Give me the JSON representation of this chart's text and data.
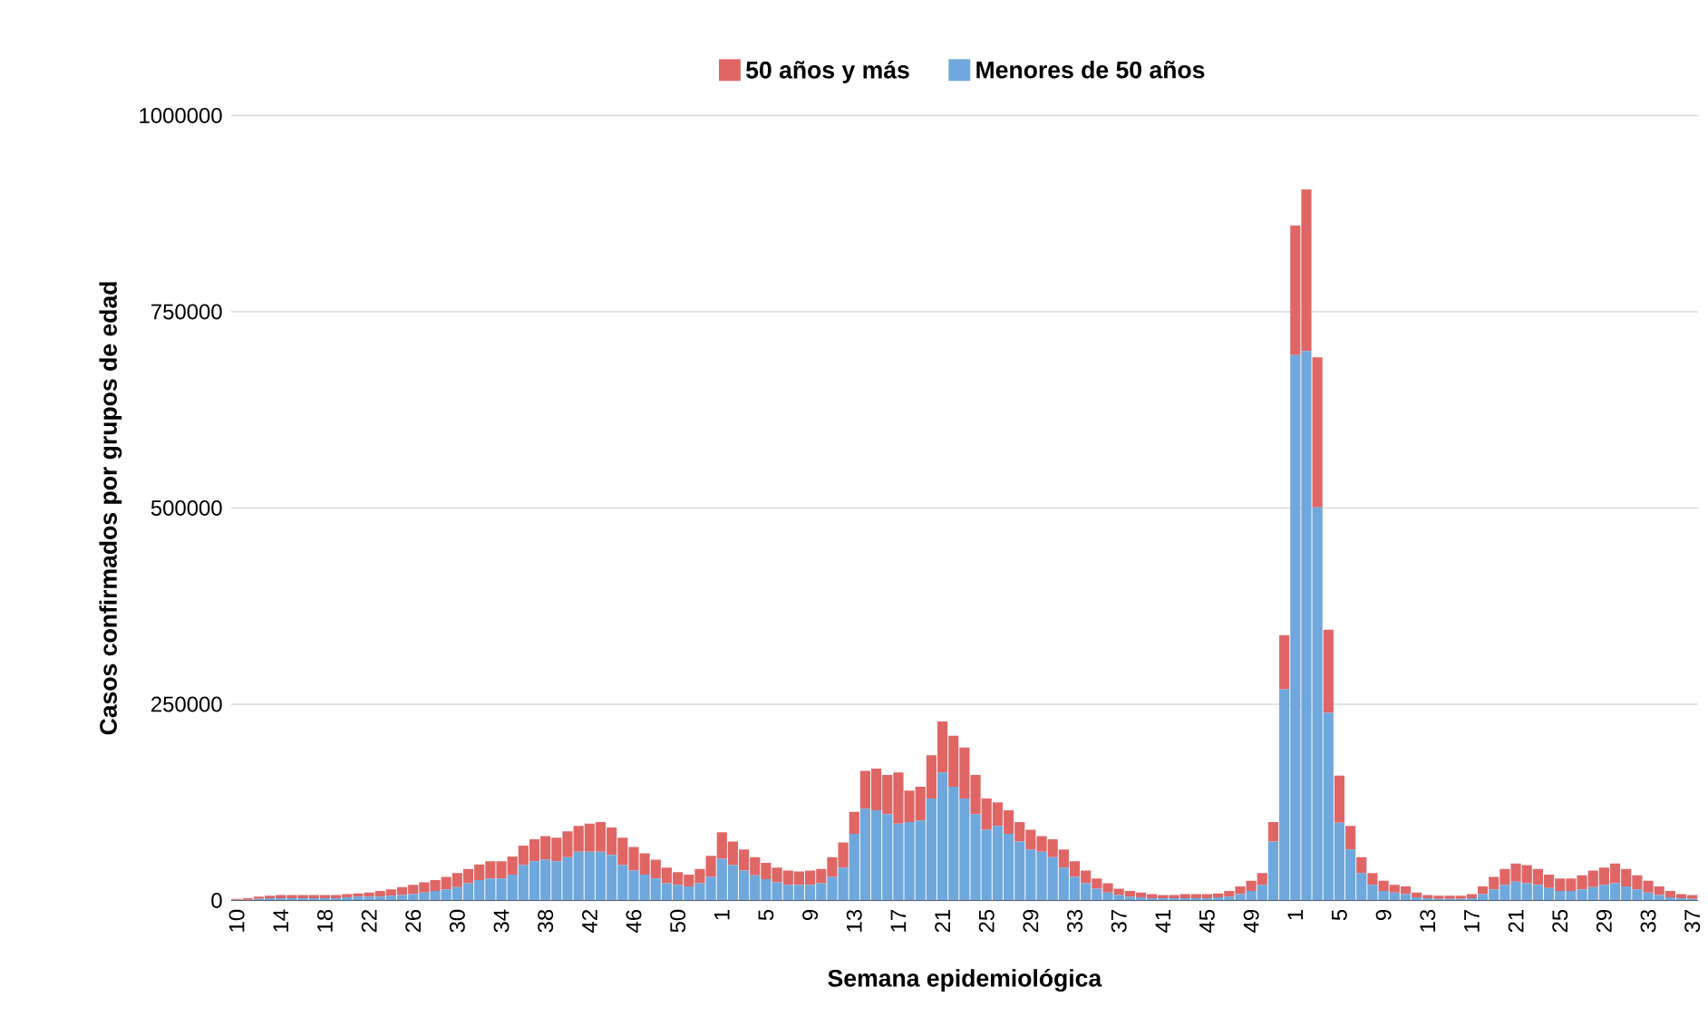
{
  "chart_data": {
    "type": "bar",
    "stacked": true,
    "xlabel": "Semana epidemiológica",
    "ylabel": "Casos confirmados por grupos de edad",
    "categories": [
      "10",
      null,
      null,
      null,
      "14",
      null,
      null,
      null,
      "18",
      null,
      null,
      null,
      "22",
      null,
      null,
      null,
      "26",
      null,
      null,
      null,
      "30",
      null,
      null,
      null,
      "34",
      null,
      null,
      null,
      "38",
      null,
      null,
      null,
      "42",
      null,
      null,
      null,
      "46",
      null,
      null,
      null,
      "50",
      null,
      null,
      null,
      "1",
      null,
      null,
      null,
      "5",
      null,
      null,
      null,
      "9",
      null,
      null,
      null,
      "13",
      null,
      null,
      null,
      "17",
      null,
      null,
      null,
      "21",
      null,
      null,
      null,
      "25",
      null,
      null,
      null,
      "29",
      null,
      null,
      null,
      "33",
      null,
      null,
      null,
      "37",
      null,
      null,
      null,
      "41",
      null,
      null,
      null,
      "45",
      null,
      null,
      null,
      "49",
      null,
      null,
      null,
      "1",
      null,
      null,
      null,
      "5",
      null,
      null,
      null,
      "9",
      null,
      null,
      null,
      "13",
      null,
      null,
      null,
      "17",
      null,
      null,
      null,
      "21",
      null,
      null,
      null,
      "25",
      null,
      null,
      null,
      "29",
      null,
      null,
      null,
      "33",
      null,
      null,
      null,
      "37"
    ],
    "series": [
      {
        "name": "Menores de 50 años",
        "color": "#6fa8dc",
        "values": [
          1000,
          1000,
          2000,
          3000,
          3000,
          3000,
          3000,
          3000,
          3000,
          3000,
          4000,
          5000,
          5000,
          5000,
          6000,
          7000,
          8000,
          10000,
          12000,
          14000,
          17000,
          22000,
          26000,
          28000,
          28000,
          33000,
          45000,
          50000,
          52000,
          50000,
          55000,
          62000,
          62000,
          62000,
          58000,
          45000,
          38000,
          33000,
          28000,
          22000,
          20000,
          18000,
          22000,
          30000,
          53000,
          45000,
          38000,
          32000,
          27000,
          23000,
          20000,
          20000,
          20000,
          22000,
          30000,
          42000,
          85000,
          117000,
          115000,
          110000,
          98000,
          100000,
          102000,
          130000,
          163000,
          145000,
          130000,
          110000,
          90000,
          95000,
          85000,
          75000,
          65000,
          62000,
          55000,
          42000,
          30000,
          22000,
          15000,
          10000,
          7000,
          5000,
          4000,
          3000,
          3000,
          3000,
          3000,
          3000,
          3000,
          4000,
          5000,
          8000,
          12000,
          20000,
          75000,
          269000,
          695000,
          700000,
          501000,
          239000,
          99000,
          65000,
          35000,
          20000,
          12000,
          10000,
          8000,
          4000,
          3000,
          2000,
          2000,
          2000,
          3000,
          8000,
          14000,
          20000,
          24000,
          22000,
          20000,
          16000,
          12000,
          12000,
          14000,
          17000,
          20000,
          22000,
          18000,
          14000,
          10000,
          7000,
          4000,
          3000,
          2000
        ]
      },
      {
        "name": "50 años y más",
        "color": "#e06666",
        "values": [
          1000,
          2000,
          3000,
          3000,
          4000,
          4000,
          4000,
          4000,
          4000,
          4000,
          4000,
          4000,
          5000,
          7000,
          8000,
          10000,
          12000,
          13000,
          14000,
          16000,
          18000,
          18000,
          20000,
          22000,
          22000,
          23000,
          25000,
          28000,
          30000,
          30000,
          33000,
          33000,
          36000,
          38000,
          35000,
          35000,
          30000,
          27000,
          24000,
          20000,
          16000,
          15000,
          18000,
          27000,
          34000,
          30000,
          27000,
          23000,
          21000,
          19000,
          18000,
          17000,
          18000,
          18000,
          25000,
          32000,
          28000,
          48000,
          53000,
          50000,
          65000,
          40000,
          43000,
          55000,
          65000,
          65000,
          65000,
          50000,
          40000,
          30000,
          30000,
          25000,
          25000,
          20000,
          23000,
          23000,
          20000,
          16000,
          13000,
          12000,
          8000,
          7000,
          6000,
          5000,
          4000,
          4000,
          5000,
          5000,
          5000,
          5000,
          7000,
          10000,
          13000,
          15000,
          25000,
          69000,
          165000,
          206000,
          191000,
          106000,
          60000,
          30000,
          20000,
          15000,
          13000,
          10000,
          10000,
          6000,
          4000,
          4000,
          4000,
          4000,
          5000,
          10000,
          16000,
          20000,
          23000,
          23000,
          20000,
          17000,
          16000,
          16000,
          18000,
          21000,
          22000,
          25000,
          22000,
          18000,
          15000,
          11000,
          8000,
          5000,
          5000
        ]
      }
    ],
    "ylim": [
      0,
      1000000
    ],
    "yticks": [
      0,
      250000,
      500000,
      750000,
      1000000
    ],
    "grid": "y",
    "legend": "top"
  }
}
